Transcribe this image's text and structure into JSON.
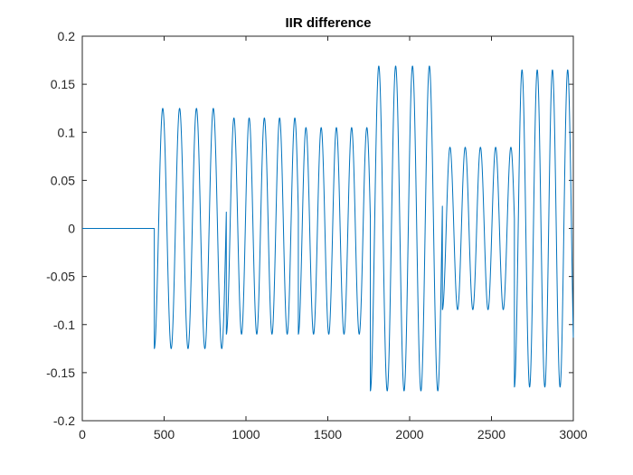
{
  "chart_data": {
    "type": "line",
    "title": "IIR difference",
    "xlabel": "",
    "ylabel": "",
    "xlim": [
      0,
      3000
    ],
    "ylim": [
      -0.2,
      0.2
    ],
    "grid": false,
    "xticks": [
      0,
      500,
      1000,
      1500,
      2000,
      2500,
      3000
    ],
    "xtick_labels": [
      "0",
      "500",
      "1000",
      "1500",
      "2000",
      "2500",
      "3000"
    ],
    "yticks": [
      -0.2,
      -0.15,
      -0.1,
      -0.05,
      0,
      0.05,
      0.1,
      0.15,
      0.2
    ],
    "ytick_labels": [
      "-0.2",
      "-0.15",
      "-0.1",
      "-0.05",
      "0",
      "0.05",
      "0.1",
      "0.15",
      "0.2"
    ],
    "series_color": "#0072BD",
    "series": [
      {
        "segments": [
          {
            "type": "flat",
            "x_start": 0,
            "x_end": 440,
            "value": 0
          },
          {
            "type": "sine",
            "x_start": 440,
            "x_end": 880,
            "period": 103,
            "amplitude": 0.125,
            "offset": 0,
            "phase_start": "min"
          },
          {
            "type": "sine",
            "x_start": 880,
            "x_end": 1320,
            "period": 93,
            "amplitude": 0.1125,
            "offset": 0.0025,
            "phase_start": "min"
          },
          {
            "type": "sine",
            "x_start": 1320,
            "x_end": 1760,
            "period": 93,
            "amplitude": 0.1075,
            "offset": -0.0025,
            "phase_start": "min"
          },
          {
            "type": "sine",
            "x_start": 1760,
            "x_end": 2200,
            "period": 103,
            "amplitude": 0.169,
            "offset": 0,
            "phase_start": "min"
          },
          {
            "type": "sine",
            "x_start": 2200,
            "x_end": 2640,
            "period": 93,
            "amplitude": 0.0845,
            "offset": 0,
            "phase_start": "min"
          },
          {
            "type": "sine",
            "x_start": 2640,
            "x_end": 3000,
            "period": 93,
            "amplitude": 0.165,
            "offset": 0,
            "phase_start": "min"
          }
        ]
      }
    ]
  }
}
